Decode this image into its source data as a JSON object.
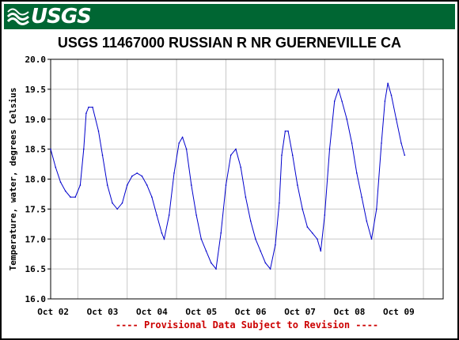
{
  "header": {
    "logo_text": "USGS",
    "logo_icon": "usgs-wave-logo",
    "bar_color": "#006633"
  },
  "chart_data": {
    "type": "line",
    "title": "USGS 11467000 RUSSIAN R NR GUERNEVILLE CA",
    "ylabel": "Temperature, water, degrees Celsius",
    "xlabel": "",
    "footnote": "---- Provisional Data Subject to Revision ----",
    "ylim": [
      16.0,
      20.0
    ],
    "y_ticks": [
      "16.0",
      "16.5",
      "17.0",
      "17.5",
      "18.0",
      "18.5",
      "19.0",
      "19.5",
      "20.0"
    ],
    "x_ticks": [
      "Oct 02",
      "Oct 03",
      "Oct 04",
      "Oct 05",
      "Oct 06",
      "Oct 07",
      "Oct 08",
      "Oct 09"
    ],
    "xlim_days": [
      1.45,
      9.4
    ],
    "grid": true,
    "line_color": "#0000cc",
    "footnote_color": "#cc0000",
    "series": [
      {
        "points": [
          [
            1.45,
            18.5
          ],
          [
            1.55,
            18.2
          ],
          [
            1.65,
            17.95
          ],
          [
            1.75,
            17.8
          ],
          [
            1.85,
            17.7
          ],
          [
            1.95,
            17.7
          ],
          [
            2.05,
            17.9
          ],
          [
            2.12,
            18.5
          ],
          [
            2.17,
            19.1
          ],
          [
            2.22,
            19.2
          ],
          [
            2.3,
            19.2
          ],
          [
            2.42,
            18.8
          ],
          [
            2.5,
            18.4
          ],
          [
            2.6,
            17.9
          ],
          [
            2.7,
            17.6
          ],
          [
            2.8,
            17.5
          ],
          [
            2.9,
            17.6
          ],
          [
            3.0,
            17.9
          ],
          [
            3.1,
            18.05
          ],
          [
            3.2,
            18.1
          ],
          [
            3.3,
            18.05
          ],
          [
            3.4,
            17.9
          ],
          [
            3.5,
            17.7
          ],
          [
            3.6,
            17.4
          ],
          [
            3.7,
            17.1
          ],
          [
            3.75,
            17.0
          ],
          [
            3.85,
            17.4
          ],
          [
            3.95,
            18.1
          ],
          [
            4.05,
            18.6
          ],
          [
            4.12,
            18.7
          ],
          [
            4.2,
            18.5
          ],
          [
            4.3,
            17.9
          ],
          [
            4.4,
            17.4
          ],
          [
            4.5,
            17.0
          ],
          [
            4.6,
            16.8
          ],
          [
            4.7,
            16.6
          ],
          [
            4.8,
            16.5
          ],
          [
            4.9,
            17.1
          ],
          [
            5.0,
            17.9
          ],
          [
            5.1,
            18.4
          ],
          [
            5.2,
            18.5
          ],
          [
            5.3,
            18.2
          ],
          [
            5.4,
            17.7
          ],
          [
            5.5,
            17.3
          ],
          [
            5.6,
            17.0
          ],
          [
            5.7,
            16.8
          ],
          [
            5.8,
            16.6
          ],
          [
            5.9,
            16.5
          ],
          [
            6.0,
            16.9
          ],
          [
            6.08,
            17.6
          ],
          [
            6.13,
            18.4
          ],
          [
            6.2,
            18.8
          ],
          [
            6.26,
            18.8
          ],
          [
            6.35,
            18.4
          ],
          [
            6.45,
            17.9
          ],
          [
            6.55,
            17.5
          ],
          [
            6.65,
            17.2
          ],
          [
            6.75,
            17.1
          ],
          [
            6.85,
            17.0
          ],
          [
            6.92,
            16.8
          ],
          [
            7.0,
            17.4
          ],
          [
            7.1,
            18.5
          ],
          [
            7.2,
            19.3
          ],
          [
            7.28,
            19.5
          ],
          [
            7.35,
            19.3
          ],
          [
            7.45,
            19.0
          ],
          [
            7.55,
            18.6
          ],
          [
            7.65,
            18.1
          ],
          [
            7.75,
            17.7
          ],
          [
            7.85,
            17.3
          ],
          [
            7.95,
            17.0
          ],
          [
            8.05,
            17.5
          ],
          [
            8.15,
            18.6
          ],
          [
            8.22,
            19.3
          ],
          [
            8.28,
            19.6
          ],
          [
            8.35,
            19.4
          ],
          [
            8.45,
            19.0
          ],
          [
            8.55,
            18.6
          ],
          [
            8.62,
            18.4
          ]
        ]
      }
    ]
  }
}
